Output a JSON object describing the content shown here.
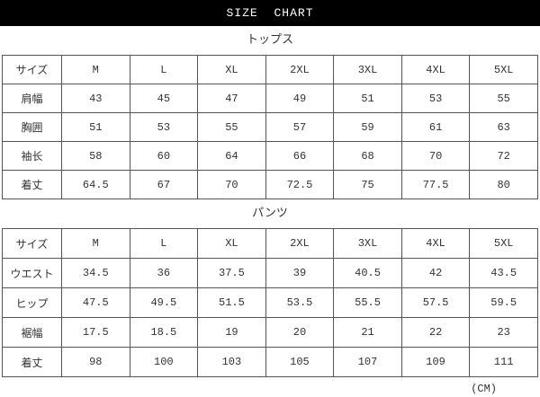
{
  "title": "SIZE CHART",
  "unit_note": "(CM)",
  "colors": {
    "title_bar_bg": "#000000",
    "title_bar_text": "#ffffff",
    "body_text": "#333333",
    "grid_border": "#555555",
    "background": "#ffffff"
  },
  "sections": [
    {
      "heading": "トップス",
      "table": {
        "columns": [
          "サイズ",
          "M",
          "L",
          "XL",
          "2XL",
          "3XL",
          "4XL",
          "5XL"
        ],
        "rows": [
          {
            "label": "肩幅",
            "values": [
              "43",
              "45",
              "47",
              "49",
              "51",
              "53",
              "55"
            ]
          },
          {
            "label": "胸囲",
            "values": [
              "51",
              "53",
              "55",
              "57",
              "59",
              "61",
              "63"
            ]
          },
          {
            "label": "袖长",
            "values": [
              "58",
              "60",
              "64",
              "66",
              "68",
              "70",
              "72"
            ]
          },
          {
            "label": "着丈",
            "values": [
              "64.5",
              "67",
              "70",
              "72.5",
              "75",
              "77.5",
              "80"
            ]
          }
        ]
      }
    },
    {
      "heading": "パンツ",
      "table": {
        "columns": [
          "サイズ",
          "M",
          "L",
          "XL",
          "2XL",
          "3XL",
          "4XL",
          "5XL"
        ],
        "rows": [
          {
            "label": "ウエスト",
            "values": [
              "34.5",
              "36",
              "37.5",
              "39",
              "40.5",
              "42",
              "43.5"
            ]
          },
          {
            "label": "ヒップ",
            "values": [
              "47.5",
              "49.5",
              "51.5",
              "53.5",
              "55.5",
              "57.5",
              "59.5"
            ]
          },
          {
            "label": "裾幅",
            "values": [
              "17.5",
              "18.5",
              "19",
              "20",
              "21",
              "22",
              "23"
            ]
          },
          {
            "label": "着丈",
            "values": [
              "98",
              "100",
              "103",
              "105",
              "107",
              "109",
              "111"
            ]
          }
        ]
      }
    }
  ]
}
